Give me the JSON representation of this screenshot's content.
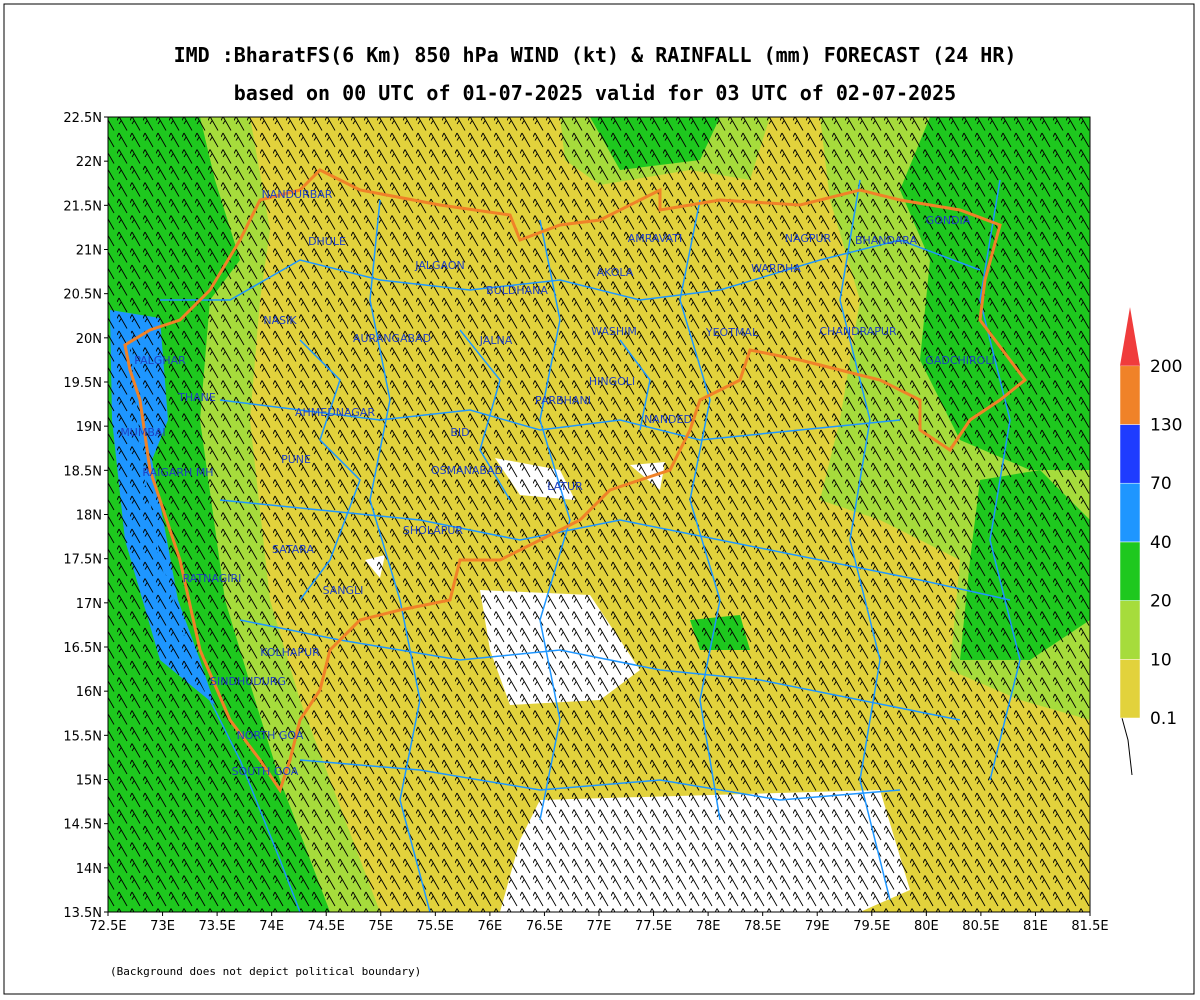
{
  "title": "IMD :BharatFS(6 Km) 850 hPa WIND (kt) & RAINFALL (mm) FORECAST (24 HR)",
  "subtitle": "based on 00 UTC of 01-07-2025 valid for 03 UTC of 02-07-2025",
  "lat_labels": [
    "22.5N",
    "22N",
    "21.5N",
    "21N",
    "20.5N",
    "20N",
    "19.5N",
    "19N",
    "18.5N",
    "18N",
    "17.5N",
    "17N",
    "16.5N",
    "16N",
    "15.5N",
    "15N",
    "14.5N",
    "14N",
    "13.5N"
  ],
  "lon_labels": [
    "72.5E",
    "73E",
    "73.5E",
    "74E",
    "74.5E",
    "75E",
    "75.5E",
    "76E",
    "76.5E",
    "77E",
    "77.5E",
    "78E",
    "78.5E",
    "79E",
    "79.5E",
    "80E",
    "80.5E",
    "81E",
    "81.5E"
  ],
  "colorbar": {
    "levels": [
      0.1,
      10,
      20,
      40,
      70,
      130,
      200
    ],
    "colors": [
      "#e2d23c",
      "#a6dc3c",
      "#1ec81e",
      "#1e96ff",
      "#1e3cff",
      "#f08228",
      "#f03c3c"
    ]
  },
  "places": [
    "NANDURBAR",
    "DHULE",
    "JALGAON",
    "BULDHANA",
    "AMRAVATI",
    "AKOLA",
    "NAGPUR",
    "BHANDARA",
    "GONDIA",
    "WARDHA",
    "NASIK",
    "AURANGABAD",
    "JALNA",
    "WASHIM",
    "YEOTMAL",
    "CHANDRAPUR",
    "GADCHIROLI",
    "PALGHAR",
    "THANE",
    "MUMBAI",
    "AHMEDNAGAR",
    "BID",
    "HINGOLI",
    "PARBHANI",
    "NANDED",
    "PUNE",
    "RAIGARH MH",
    "OSMANABAD",
    "LATUR",
    "SHOLAPUR",
    "SATARA",
    "RATNAGIRI",
    "SANGLI",
    "KOLHAPUR",
    "SINDHUDURG",
    "NORTH GOA",
    "SOUTH GOA"
  ],
  "footnote": "(Background does not depict political boundary)"
}
